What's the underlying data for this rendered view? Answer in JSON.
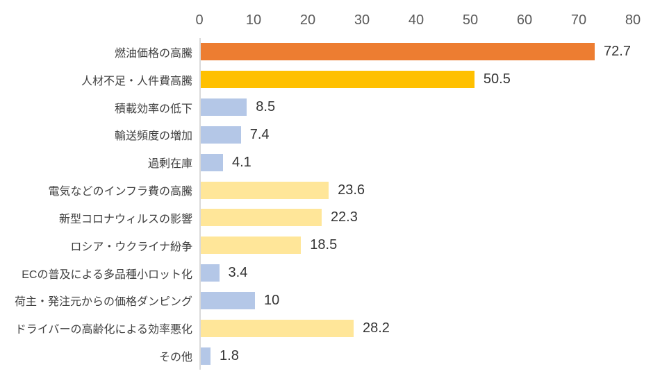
{
  "chart_data": {
    "type": "bar",
    "orientation": "horizontal",
    "title": "",
    "xlabel": "",
    "ylabel": "",
    "xlim": [
      0,
      80
    ],
    "x_ticks": [
      0,
      10,
      20,
      30,
      40,
      50,
      60,
      70,
      80
    ],
    "grid": false,
    "legend": "none",
    "axis_position": "top",
    "categories": [
      "燃油価格の高騰",
      "人材不足・人件費高騰",
      "積載効率の低下",
      "輸送頻度の増加",
      "過剰在庫",
      "電気などのインフラ費の高騰",
      "新型コロナウィルスの影響",
      "ロシア・ウクライナ紛争",
      "ECの普及による多品種小ロット化",
      "荷主・発注元からの価格ダンピング",
      "ドライバーの高齢化による効率悪化",
      "その他"
    ],
    "values": [
      72.7,
      50.5,
      8.5,
      7.4,
      4.1,
      23.6,
      22.3,
      18.5,
      3.4,
      10,
      28.2,
      1.8
    ],
    "value_labels": [
      "72.7",
      "50.5",
      "8.5",
      "7.4",
      "4.1",
      "23.6",
      "22.3",
      "18.5",
      "3.4",
      "10",
      "28.2",
      "1.8"
    ],
    "bar_colors": [
      "#ED7D31",
      "#FFC000",
      "#B4C7E7",
      "#B4C7E7",
      "#B4C7E7",
      "#FFE699",
      "#FFE699",
      "#FFE699",
      "#B4C7E7",
      "#B4C7E7",
      "#FFE699",
      "#B4C7E7"
    ],
    "colors": {
      "highlight_orange": "#ED7D31",
      "highlight_gold": "#FFC000",
      "light_blue": "#B4C7E7",
      "light_yellow": "#FFE699",
      "axis_line": "#D9D9D9",
      "tick_text": "#595959",
      "category_text": "#404040",
      "value_text": "#333333",
      "background": "#FFFFFF"
    }
  }
}
